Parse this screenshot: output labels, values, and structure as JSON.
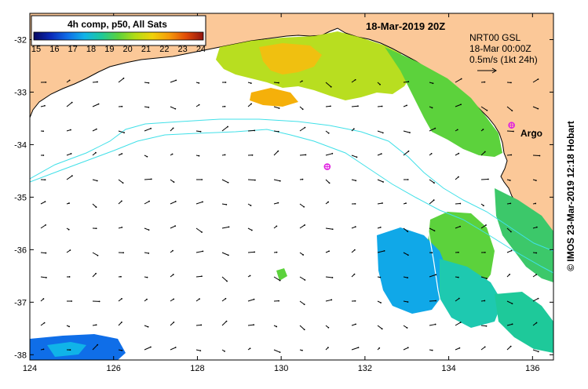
{
  "title": "18-Mar-2019 20Z",
  "colorbar": {
    "label": "4h comp, p50, All Sats",
    "ticks": [
      "15",
      "16",
      "17",
      "18",
      "19",
      "20",
      "21",
      "22",
      "23",
      "24"
    ],
    "stops": [
      "#08085e",
      "#0a2ab8",
      "#0f6ee8",
      "#10b3e8",
      "#1ec99a",
      "#5cd23c",
      "#b4dc14",
      "#f0d20a",
      "#f59a0a",
      "#e04a08",
      "#901410"
    ]
  },
  "current_legend": {
    "line1": "NRT00 GSL",
    "line2": "18-Mar 00:00Z",
    "line3": "0.5m/s (1kt 24h)"
  },
  "argo": {
    "label": "Argo",
    "color": "#e020e0",
    "floats": [
      {
        "lon": 135.5,
        "lat": -33.63
      },
      {
        "lon": 131.1,
        "lat": -34.42
      }
    ]
  },
  "axes": {
    "lon_min": 124,
    "lon_max": 136.5,
    "lat_min": -38.1,
    "lat_max": -31.5,
    "lon_ticks": [
      "124",
      "126",
      "128",
      "130",
      "132",
      "134",
      "136"
    ],
    "lat_ticks": [
      "-32",
      "-33",
      "-34",
      "-35",
      "-36",
      "-37",
      "-38"
    ]
  },
  "credit": "© IMOS 23-Mar-2019 12:18 Hobart",
  "colors": {
    "land": "#fbc898",
    "sea": "#ffffff",
    "contour": "#40e0e8"
  }
}
